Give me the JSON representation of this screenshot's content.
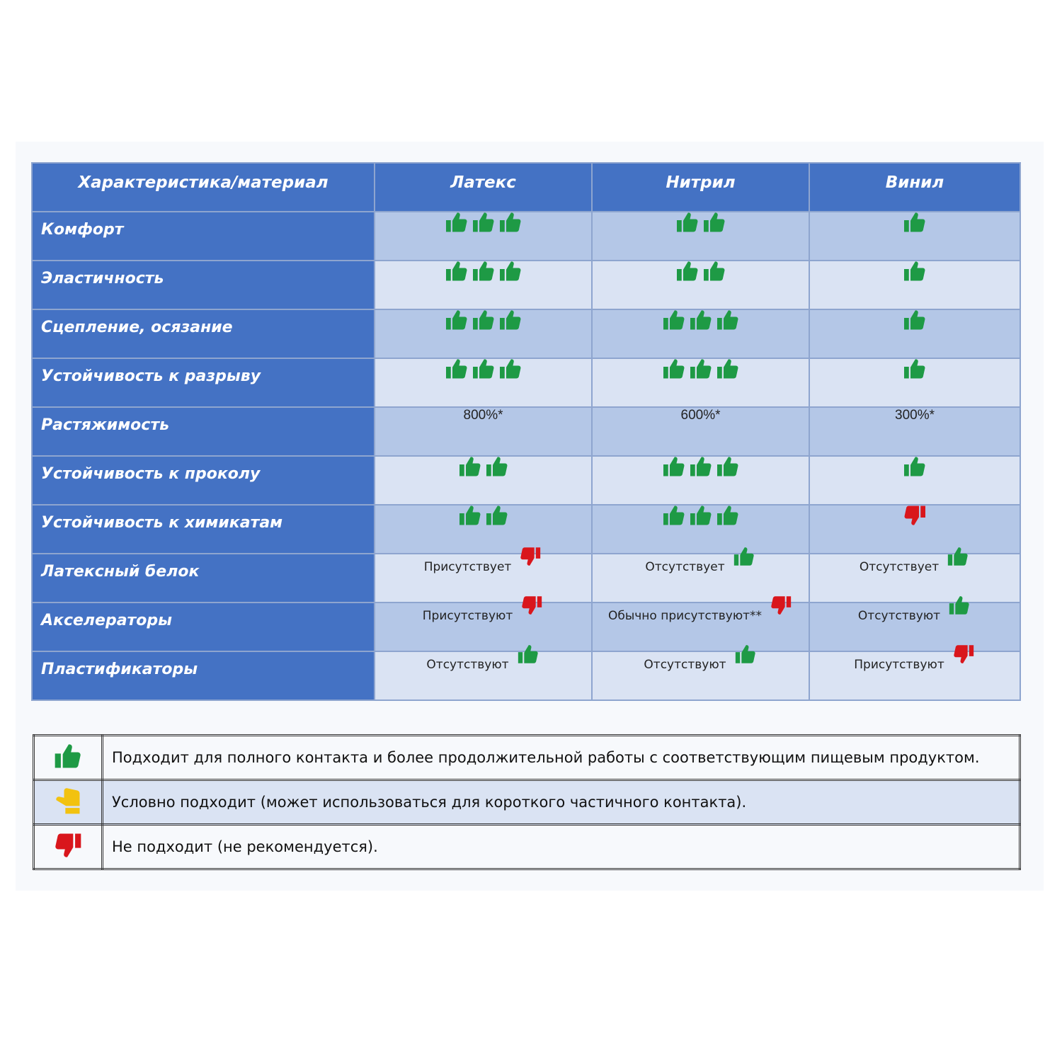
{
  "colors": {
    "header": "#4472c4",
    "row_dark": "#b4c7e7",
    "row_light": "#dae3f3",
    "thumb_up": "#1e9a45",
    "thumb_down": "#d9161c",
    "thumb_conditional": "#f2c20f"
  },
  "table": {
    "headers": [
      "Характеристика/материал",
      "Латекс",
      "Нитрил",
      "Винил"
    ],
    "rows": [
      {
        "label": "Комфорт",
        "cells": [
          {
            "icon": "thumb-up",
            "count": 3
          },
          {
            "icon": "thumb-up",
            "count": 2
          },
          {
            "icon": "thumb-up",
            "count": 1
          }
        ]
      },
      {
        "label": "Эластичность",
        "cells": [
          {
            "icon": "thumb-up",
            "count": 3
          },
          {
            "icon": "thumb-up",
            "count": 2
          },
          {
            "icon": "thumb-up",
            "count": 1
          }
        ]
      },
      {
        "label": "Сцепление, осязание",
        "cells": [
          {
            "icon": "thumb-up",
            "count": 3
          },
          {
            "icon": "thumb-up",
            "count": 3
          },
          {
            "icon": "thumb-up",
            "count": 1
          }
        ]
      },
      {
        "label": "Устойчивость к разрыву",
        "cells": [
          {
            "icon": "thumb-up",
            "count": 3
          },
          {
            "icon": "thumb-up",
            "count": 3
          },
          {
            "icon": "thumb-up",
            "count": 1
          }
        ]
      },
      {
        "label": "Растяжимость",
        "cells": [
          {
            "text": "800%*"
          },
          {
            "text": "600%*"
          },
          {
            "text": "300%*"
          }
        ]
      },
      {
        "label": "Устойчивость к проколу",
        "cells": [
          {
            "icon": "thumb-up",
            "count": 2
          },
          {
            "icon": "thumb-up",
            "count": 3
          },
          {
            "icon": "thumb-up",
            "count": 1
          }
        ]
      },
      {
        "label": "Устойчивость к химикатам",
        "cells": [
          {
            "icon": "thumb-up",
            "count": 2
          },
          {
            "icon": "thumb-up",
            "count": 3
          },
          {
            "icon": "thumb-down",
            "count": 1
          }
        ]
      },
      {
        "label": "Латексный белок",
        "cells": [
          {
            "text": "Присутствует",
            "icon": "thumb-down"
          },
          {
            "text": "Отсутствует",
            "icon": "thumb-up"
          },
          {
            "text": "Отсутствует",
            "icon": "thumb-up"
          }
        ]
      },
      {
        "label": "Акселераторы",
        "cells": [
          {
            "text": "Присутствуют",
            "icon": "thumb-down"
          },
          {
            "text": "Обычно присутствуют**",
            "icon": "thumb-down"
          },
          {
            "text": "Отсутствуют",
            "icon": "thumb-up"
          }
        ]
      },
      {
        "label": "Пластификаторы",
        "cells": [
          {
            "text": "Отсутствуют",
            "icon": "thumb-up"
          },
          {
            "text": "Отсутствуют",
            "icon": "thumb-up"
          },
          {
            "text": "Присутствуют",
            "icon": "thumb-down"
          }
        ]
      }
    ]
  },
  "legend": [
    {
      "icon": "thumb-up",
      "text": "Подходит для полного контакта и более продолжительной работы с соответствующим пищевым продуктом."
    },
    {
      "icon": "thumb-conditional",
      "text": "Условно подходит (может использоваться для короткого частичного контакта)."
    },
    {
      "icon": "thumb-down",
      "text": "Не подходит (не рекомендуется)."
    }
  ]
}
